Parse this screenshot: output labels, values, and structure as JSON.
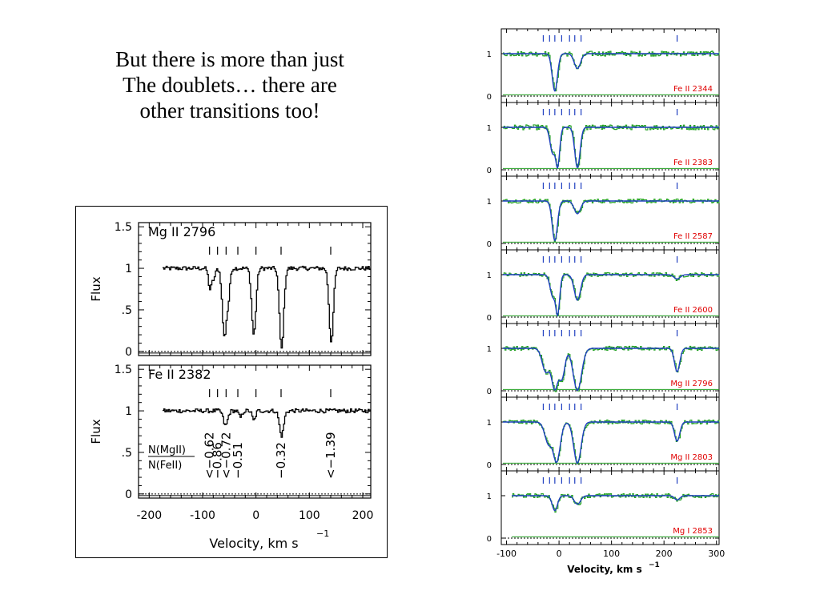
{
  "slide": {
    "title_lines": [
      "But there is more than just",
      "The doublets… there are",
      "other transitions too!"
    ]
  },
  "colors": {
    "data": "#22a122",
    "model": "#1f3fc0",
    "label": "#e00000",
    "tick": "#1f3fc0"
  },
  "chart_data": [
    {
      "type": "line",
      "name": "left-figure",
      "xlabel": "Velocity, km s",
      "xlabel_sup": "−1",
      "xlim": [
        -220,
        215
      ],
      "xticks": [
        -200,
        -100,
        0,
        100,
        200
      ],
      "xtick_labels": [
        "-200",
        "-100",
        "0",
        "100",
        "200"
      ],
      "panels": [
        {
          "label": "Mg II 2796",
          "ylabel": "Flux",
          "ylim": [
            -0.05,
            1.55
          ],
          "yticks": [
            0,
            0.5,
            1,
            1.5
          ],
          "ytick_labels": [
            "0",
            ".5",
            "1",
            "1.5"
          ],
          "component_ticks": [
            -87,
            -72,
            -56,
            -34,
            0,
            47,
            140
          ],
          "continuum": 1.0,
          "absorption": [
            {
              "v": -87,
              "depth": 0.25,
              "width": 3
            },
            {
              "v": -80,
              "depth": 0.12,
              "width": 3
            },
            {
              "v": -60,
              "depth": 0.83,
              "width": 4
            },
            {
              "v": -53,
              "depth": 0.35,
              "width": 3
            },
            {
              "v": -5,
              "depth": 0.8,
              "width": 4
            },
            {
              "v": 47,
              "depth": 0.97,
              "width": 4
            },
            {
              "v": 140,
              "depth": 0.88,
              "width": 4
            }
          ]
        },
        {
          "label": "Fe II 2382",
          "ylabel": "Flux",
          "ylim": [
            -0.05,
            1.55
          ],
          "yticks": [
            0,
            0.5,
            1,
            1.5
          ],
          "ytick_labels": [
            "0",
            ".5",
            "1",
            "1.5"
          ],
          "component_ticks": [
            -87,
            -72,
            -56,
            -34,
            0,
            47,
            140
          ],
          "continuum": 1.0,
          "absorption": [
            {
              "v": -58,
              "depth": 0.18,
              "width": 4
            },
            {
              "v": -30,
              "depth": 0.08,
              "width": 3
            },
            {
              "v": -5,
              "depth": 0.12,
              "width": 3
            },
            {
              "v": 47,
              "depth": 0.3,
              "width": 4
            }
          ],
          "ratio_label_top": "N(MgII)",
          "ratio_label_bottom": "N(FeII)",
          "ratio_values": [
            {
              "v": -87,
              "text": "<−0.62"
            },
            {
              "v": -72,
              "text": "−0.86"
            },
            {
              "v": -56,
              "text": "<−0.72"
            },
            {
              "v": -34,
              "text": "−0.51"
            },
            {
              "v": 47,
              "text": "−0.32"
            },
            {
              "v": 140,
              "text": "<−1.39"
            }
          ]
        }
      ]
    },
    {
      "type": "line",
      "name": "right-figure",
      "xlabel": "Velocity, km s",
      "xlabel_sup": "−1",
      "xlim": [
        -110,
        305
      ],
      "xticks": [
        -100,
        0,
        100,
        200,
        300
      ],
      "xtick_labels": [
        "-100",
        "0",
        "100",
        "200",
        "300"
      ],
      "component_ticks": [
        -30,
        -18,
        -8,
        5,
        20,
        30,
        42,
        225
      ],
      "panels": [
        {
          "label": "Fe II 2344",
          "yticks": [
            0,
            1
          ],
          "ytick_labels": [
            "0",
            "1"
          ],
          "noise": 0.06,
          "absorption": [
            {
              "v": -8,
              "depth": 0.88,
              "width": 5
            },
            {
              "v": 35,
              "depth": 0.35,
              "width": 6
            }
          ]
        },
        {
          "label": "Fe II 2383",
          "yticks": [
            0,
            1
          ],
          "ytick_labels": [
            "0",
            "1"
          ],
          "noise": 0.06,
          "absorption": [
            {
              "v": -12,
              "depth": 0.6,
              "width": 5
            },
            {
              "v": -3,
              "depth": 0.95,
              "width": 4
            },
            {
              "v": 35,
              "depth": 0.95,
              "width": 5
            }
          ]
        },
        {
          "label": "Fe II 2587",
          "yticks": [
            0,
            1
          ],
          "ytick_labels": [
            "0",
            "1"
          ],
          "noise": 0.05,
          "absorption": [
            {
              "v": -8,
              "depth": 0.93,
              "width": 5
            },
            {
              "v": 35,
              "depth": 0.3,
              "width": 6
            }
          ]
        },
        {
          "label": "Fe II 2600",
          "yticks": [
            0,
            1
          ],
          "ytick_labels": [
            "0",
            "1"
          ],
          "noise": 0.05,
          "absorption": [
            {
              "v": -12,
              "depth": 0.5,
              "width": 5
            },
            {
              "v": -3,
              "depth": 0.96,
              "width": 4
            },
            {
              "v": 35,
              "depth": 0.6,
              "width": 6
            },
            {
              "v": 225,
              "depth": 0.1,
              "width": 6
            }
          ]
        },
        {
          "label": "Mg II 2796",
          "yticks": [
            0,
            1
          ],
          "ytick_labels": [
            "0",
            "1"
          ],
          "noise": 0.05,
          "absorption": [
            {
              "v": -25,
              "depth": 0.55,
              "width": 7
            },
            {
              "v": -8,
              "depth": 0.98,
              "width": 7
            },
            {
              "v": 5,
              "depth": 0.7,
              "width": 6
            },
            {
              "v": 35,
              "depth": 0.99,
              "width": 8
            },
            {
              "v": 225,
              "depth": 0.55,
              "width": 5
            }
          ]
        },
        {
          "label": "Mg II 2803",
          "yticks": [
            0,
            1
          ],
          "ytick_labels": [
            "0",
            "1"
          ],
          "noise": 0.05,
          "absorption": [
            {
              "v": -20,
              "depth": 0.5,
              "width": 7
            },
            {
              "v": -5,
              "depth": 0.95,
              "width": 7
            },
            {
              "v": 35,
              "depth": 0.97,
              "width": 7
            },
            {
              "v": 225,
              "depth": 0.45,
              "width": 5
            }
          ]
        },
        {
          "label": "Mg I 2853",
          "yticks": [
            0,
            1
          ],
          "ytick_labels": [
            "0",
            "1"
          ],
          "noise": 0.05,
          "xstart": -90,
          "absorption": [
            {
              "v": -8,
              "depth": 0.35,
              "width": 5
            },
            {
              "v": 35,
              "depth": 0.2,
              "width": 6
            },
            {
              "v": 225,
              "depth": 0.1,
              "width": 5
            }
          ]
        }
      ]
    }
  ]
}
